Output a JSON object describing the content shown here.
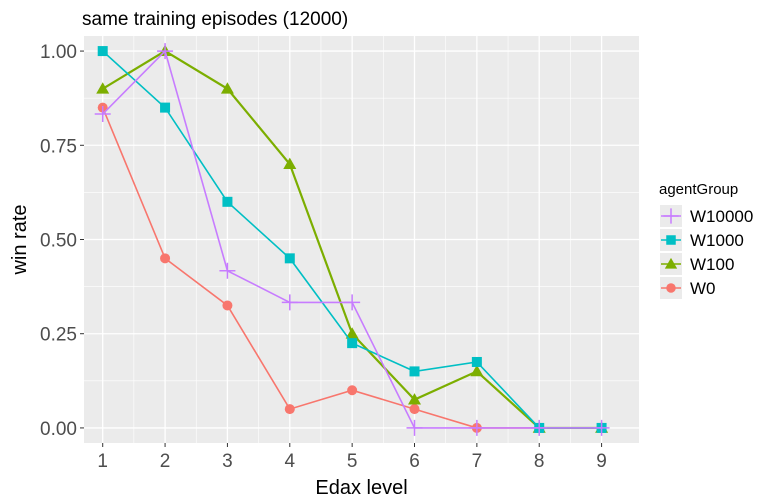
{
  "chart_data": {
    "type": "line",
    "title": "same training episodes (12000)",
    "xlabel": "Edax level",
    "ylabel": "win rate",
    "x": [
      1,
      2,
      3,
      4,
      5,
      6,
      7,
      8,
      9
    ],
    "xlim": [
      0.7,
      9.6
    ],
    "ylim": [
      -0.04,
      1.04
    ],
    "yticks": [
      0.0,
      0.25,
      0.5,
      0.75,
      1.0
    ],
    "ytick_labels": [
      "0.00",
      "0.25",
      "0.50",
      "0.75",
      "1.00"
    ],
    "grid": true,
    "legend_title": "agentGroup",
    "legend_position": "right",
    "series": [
      {
        "name": "W10000",
        "color": "#C77CFF",
        "marker": "plus",
        "values": [
          0.833,
          1.0,
          0.417,
          0.333,
          0.333,
          0.0,
          0.0,
          0.0,
          0.0
        ]
      },
      {
        "name": "W1000",
        "color": "#00BFC4",
        "marker": "square",
        "values": [
          1.0,
          0.85,
          0.6,
          0.45,
          0.225,
          0.15,
          0.175,
          0.0,
          0.0
        ]
      },
      {
        "name": "W100",
        "color": "#7CAE00",
        "marker": "triangle",
        "values": [
          0.9,
          1.0,
          0.9,
          0.7,
          0.25,
          0.075,
          0.15,
          0.0,
          0.0
        ]
      },
      {
        "name": "W0",
        "color": "#F8766D",
        "marker": "circle",
        "values": [
          0.85,
          0.45,
          0.325,
          0.05,
          0.1,
          0.05,
          0.0,
          0.0,
          0.0
        ]
      }
    ],
    "panel_background": "#EBEBEB",
    "grid_color": "#FFFFFF"
  }
}
